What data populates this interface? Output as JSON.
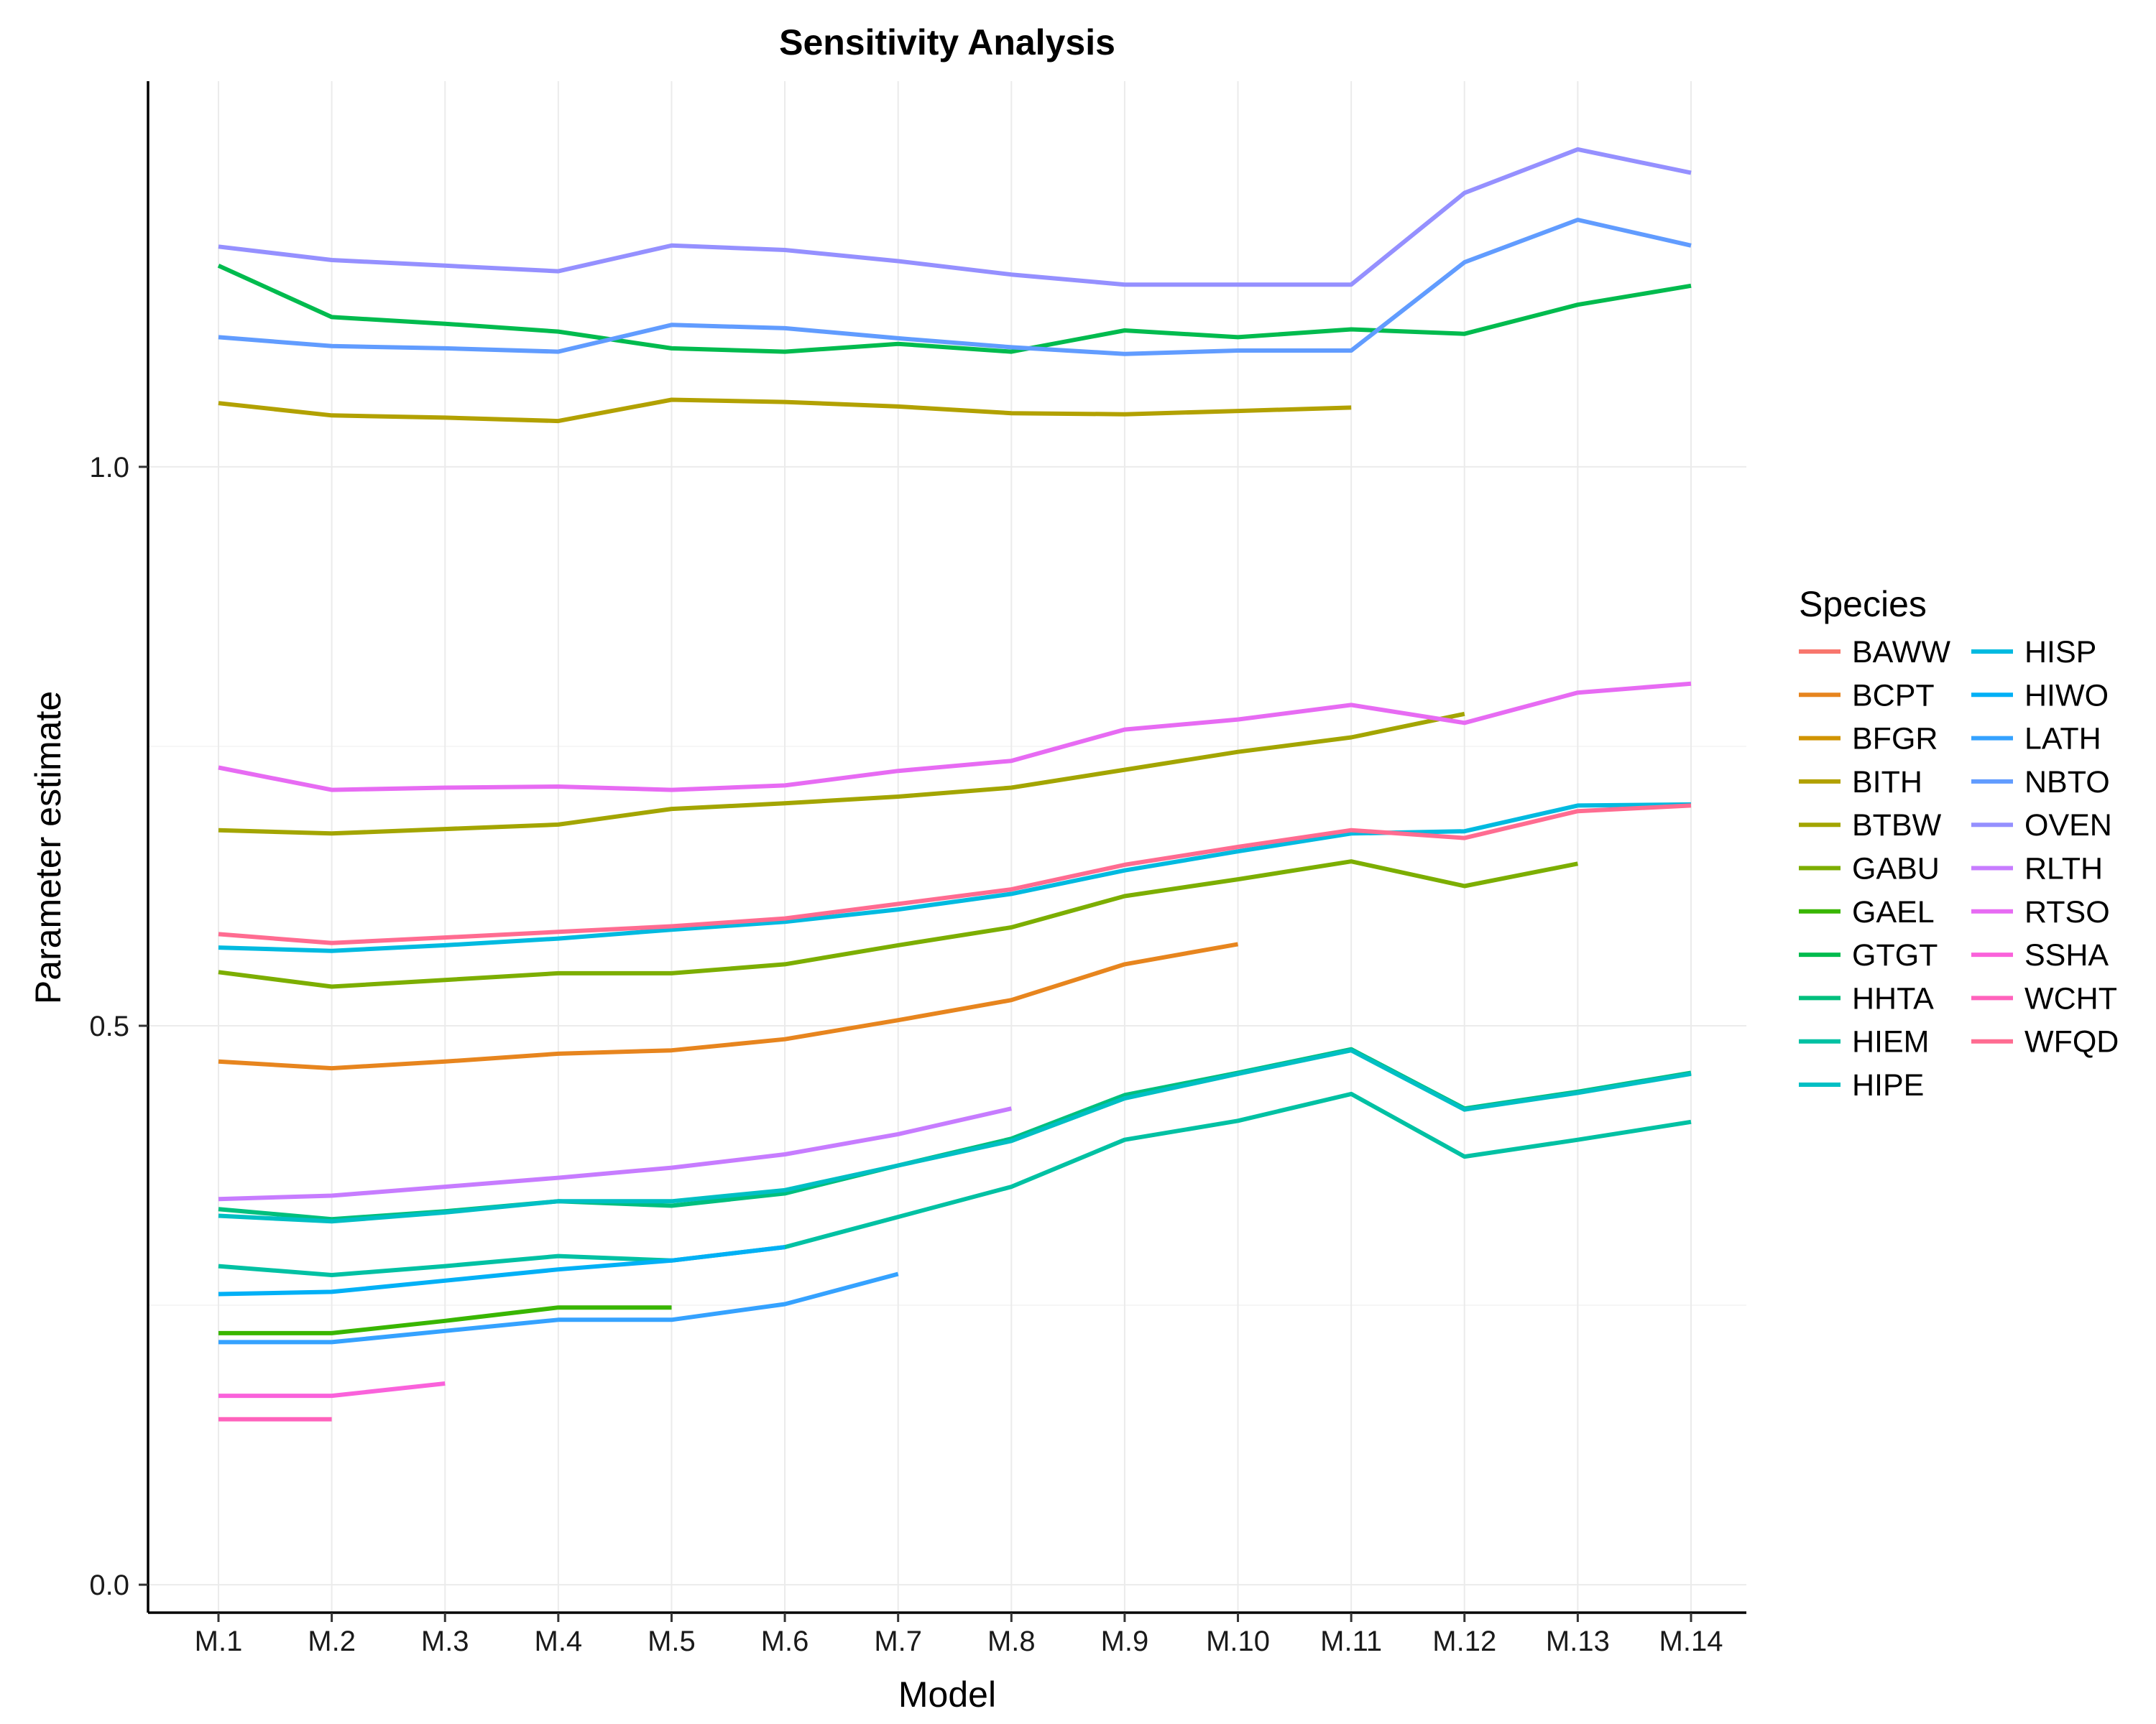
{
  "chart_data": {
    "type": "line",
    "title": "Sensitivity Analysis",
    "xlabel": "Model",
    "ylabel": "Parameter estimate",
    "categories": [
      "M.1",
      "M.2",
      "M.3",
      "M.4",
      "M.5",
      "M.6",
      "M.7",
      "M.8",
      "M.9",
      "M.10",
      "M.11",
      "M.12",
      "M.13",
      "M.14"
    ],
    "ylim": [
      -0.025,
      1.345
    ],
    "yticks": [
      0.0,
      0.5,
      1.0
    ],
    "ytick_labels": [
      "0.0",
      "0.5",
      "1.0"
    ],
    "grid": true,
    "legend": {
      "title": "Species",
      "position": "right",
      "columns": 2
    },
    "series": [
      {
        "name": "BAWW",
        "color": "#F8766D",
        "values": [
          null,
          null,
          null,
          null,
          null,
          null,
          null,
          null,
          null,
          null,
          null,
          null,
          null,
          null
        ]
      },
      {
        "name": "BCPT",
        "color": "#E7851E",
        "values": [
          0.468,
          0.462,
          0.468,
          0.475,
          0.478,
          0.488,
          0.505,
          0.523,
          0.555,
          0.573,
          null,
          null,
          null,
          null
        ]
      },
      {
        "name": "BFGR",
        "color": "#D09400",
        "values": [
          null,
          null,
          null,
          null,
          null,
          null,
          null,
          null,
          null,
          null,
          null,
          null,
          null,
          null
        ]
      },
      {
        "name": "BITH",
        "color": "#B2A100",
        "values": [
          1.057,
          1.046,
          1.044,
          1.041,
          1.06,
          1.058,
          1.054,
          1.048,
          1.047,
          1.05,
          1.053,
          null,
          null,
          null
        ]
      },
      {
        "name": "BTBW",
        "color": "#A3A500",
        "values": [
          0.675,
          0.672,
          0.676,
          0.68,
          0.694,
          0.699,
          0.705,
          0.713,
          0.729,
          0.745,
          0.758,
          0.779,
          null,
          null
        ]
      },
      {
        "name": "GABU",
        "color": "#7CAE00",
        "values": [
          0.548,
          0.535,
          0.541,
          0.547,
          0.547,
          0.555,
          0.572,
          0.588,
          0.616,
          0.631,
          0.647,
          0.625,
          0.645,
          null
        ]
      },
      {
        "name": "GAEL",
        "color": "#39B600",
        "values": [
          0.225,
          0.225,
          0.236,
          0.248,
          0.248,
          null,
          null,
          null,
          null,
          null,
          null,
          null,
          null,
          null
        ]
      },
      {
        "name": "GTGT",
        "color": "#00BB4E",
        "values": [
          1.18,
          1.134,
          1.128,
          1.121,
          1.106,
          1.103,
          1.11,
          1.103,
          1.122,
          1.116,
          1.123,
          1.119,
          1.145,
          1.162
        ]
      },
      {
        "name": "HHTA",
        "color": "#00BF7D",
        "values": [
          0.336,
          0.327,
          0.334,
          0.343,
          0.339,
          0.35,
          0.375,
          0.399,
          0.438,
          0.458,
          0.479,
          0.426,
          0.441,
          0.458
        ]
      },
      {
        "name": "HIEM",
        "color": "#00C1A3",
        "values": [
          0.285,
          0.277,
          0.285,
          0.294,
          0.29,
          0.302,
          0.329,
          0.356,
          0.398,
          0.415,
          0.439,
          0.383,
          0.398,
          0.414
        ]
      },
      {
        "name": "HIPE",
        "color": "#00BFC4",
        "values": [
          0.33,
          0.325,
          0.333,
          0.343,
          0.343,
          0.353,
          0.375,
          0.397,
          0.435,
          0.457,
          0.478,
          0.425,
          0.44,
          0.457
        ]
      },
      {
        "name": "HISP",
        "color": "#00BAE0",
        "values": [
          0.57,
          0.567,
          0.572,
          0.578,
          0.586,
          0.593,
          0.604,
          0.618,
          0.639,
          0.656,
          0.672,
          0.674,
          0.697,
          0.698
        ]
      },
      {
        "name": "HIWO",
        "color": "#00B0F6",
        "values": [
          0.26,
          0.262,
          0.272,
          0.282,
          0.29,
          0.302,
          null,
          null,
          null,
          null,
          null,
          null,
          null,
          null
        ]
      },
      {
        "name": "LATH",
        "color": "#35A2FF",
        "values": [
          0.217,
          0.217,
          0.227,
          0.237,
          0.237,
          0.251,
          0.278,
          null,
          null,
          null,
          null,
          null,
          null,
          null
        ]
      },
      {
        "name": "NBTO",
        "color": "#619CFF",
        "values": [
          1.116,
          1.108,
          1.106,
          1.103,
          1.127,
          1.124,
          1.115,
          1.107,
          1.101,
          1.104,
          1.104,
          1.183,
          1.221,
          1.198
        ]
      },
      {
        "name": "OVEN",
        "color": "#9590FF",
        "values": [
          1.197,
          1.185,
          1.18,
          1.175,
          1.198,
          1.194,
          1.184,
          1.172,
          1.163,
          1.163,
          1.163,
          1.245,
          1.284,
          1.263
        ]
      },
      {
        "name": "RLTH",
        "color": "#C77CFF",
        "values": [
          0.345,
          0.348,
          0.356,
          0.364,
          0.373,
          0.385,
          0.403,
          0.426,
          null,
          null,
          null,
          null,
          null,
          null
        ]
      },
      {
        "name": "RTSO",
        "color": "#E76BF3",
        "values": [
          0.731,
          0.711,
          0.713,
          0.714,
          0.711,
          0.715,
          0.728,
          0.737,
          0.765,
          0.774,
          0.787,
          0.771,
          0.798,
          0.806
        ]
      },
      {
        "name": "SSHA",
        "color": "#FA62DB",
        "values": [
          0.169,
          0.169,
          0.18,
          null,
          null,
          null,
          null,
          null,
          null,
          null,
          null,
          null,
          null,
          null
        ]
      },
      {
        "name": "WCHT",
        "color": "#FF62BC",
        "values": [
          0.148,
          0.148,
          null,
          null,
          null,
          null,
          null,
          null,
          null,
          null,
          null,
          null,
          null,
          null
        ]
      },
      {
        "name": "WFQD",
        "color": "#FF6C91",
        "values": [
          0.582,
          0.574,
          0.579,
          0.584,
          0.589,
          0.596,
          0.609,
          0.622,
          0.644,
          0.66,
          0.675,
          0.668,
          0.692,
          0.697
        ]
      }
    ]
  }
}
